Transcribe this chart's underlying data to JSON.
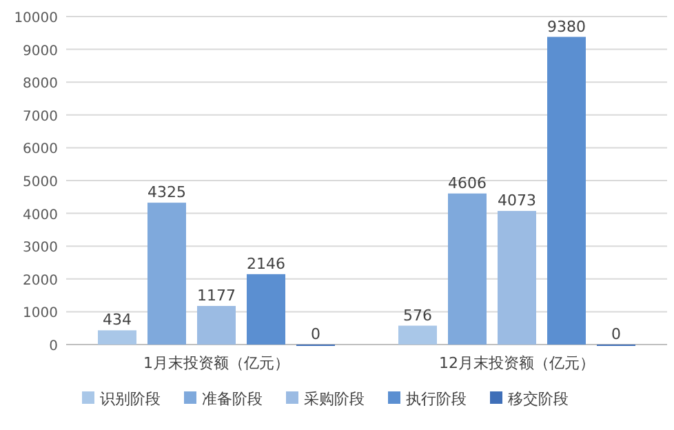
{
  "chart_data": {
    "type": "bar",
    "categories": [
      "1月末投资额（亿元）",
      "12月末投资额（亿元）"
    ],
    "series": [
      {
        "name": "识别阶段",
        "color": "#a9c7e8",
        "values": [
          434,
          576
        ]
      },
      {
        "name": "准备阶段",
        "color": "#7fa9dc",
        "values": [
          4325,
          4606
        ]
      },
      {
        "name": "采购阶段",
        "color": "#9bbbe3",
        "values": [
          1177,
          4073
        ]
      },
      {
        "name": "执行阶段",
        "color": "#5b8fd1",
        "values": [
          2146,
          9380
        ]
      },
      {
        "name": "移交阶段",
        "color": "#3f6fb8",
        "values": [
          0,
          0
        ]
      }
    ],
    "ylim": [
      0,
      10000
    ],
    "yticks": [
      0,
      1000,
      2000,
      3000,
      4000,
      5000,
      6000,
      7000,
      8000,
      9000,
      10000
    ],
    "grid": "y",
    "legend": "bottom",
    "data_labels": true
  }
}
